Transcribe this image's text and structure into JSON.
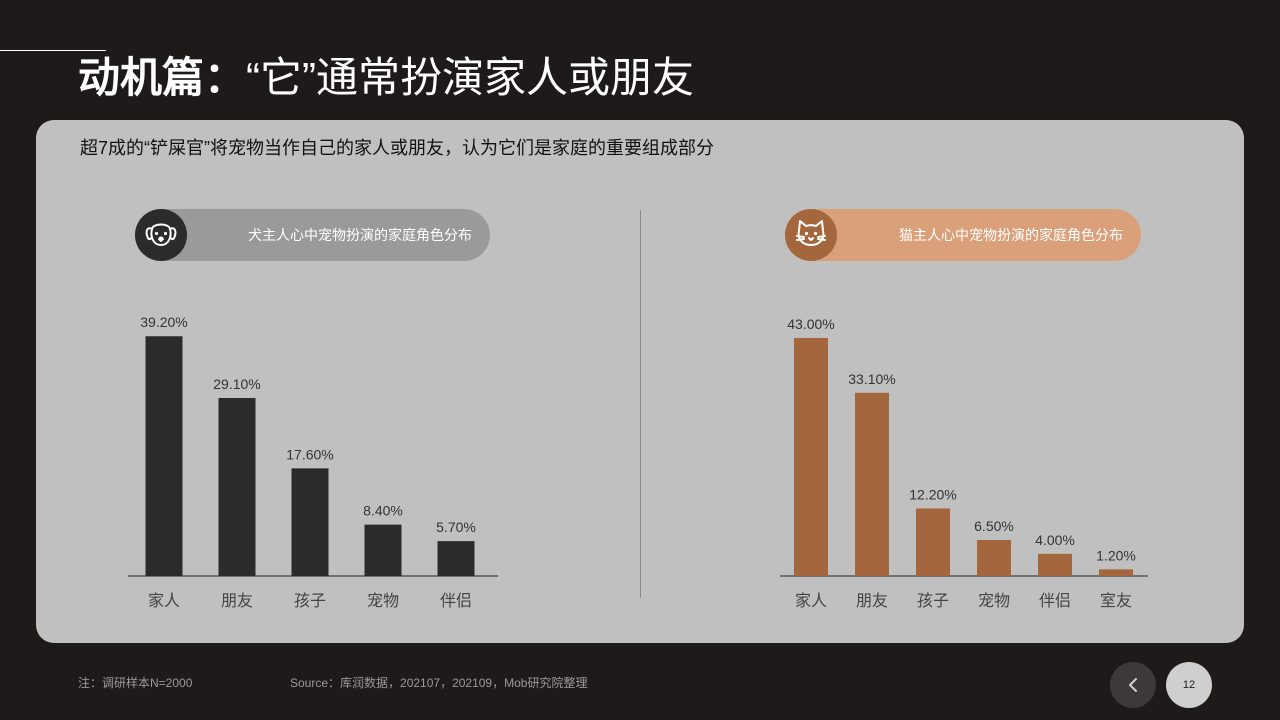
{
  "header": {
    "title_lead": "动机篇：",
    "title_rest": "“它”通常扮演家人或朋友"
  },
  "panel": {
    "subtitle": "超7成的“铲屎官”将宠物当作自己的家人或朋友，认为它们是家庭的重要组成部分",
    "dog_pill": {
      "label": "犬主人心中宠物扮演的家庭角色分布",
      "icon": "dog-icon",
      "color": "#9a9a9a",
      "icon_bg": "#2b2b2b"
    },
    "cat_pill": {
      "label": "猫主人心中宠物扮演的家庭角色分布",
      "icon": "cat-icon",
      "color": "#d9a07a",
      "icon_bg": "#a4673d"
    }
  },
  "chart_data": [
    {
      "type": "bar",
      "categories": [
        "家人",
        "朋友",
        "孩子",
        "宠物",
        "伴侣"
      ],
      "values": [
        39.2,
        29.1,
        17.6,
        8.4,
        5.7
      ],
      "labels": [
        "39.20%",
        "29.10%",
        "17.60%",
        "8.40%",
        "5.70%"
      ],
      "ylim": [
        0,
        43
      ],
      "color": "#2b2b2b",
      "grid": false
    },
    {
      "type": "bar",
      "categories": [
        "家人",
        "朋友",
        "孩子",
        "宠物",
        "伴侣",
        "室友"
      ],
      "values": [
        43.0,
        33.1,
        12.2,
        6.5,
        4.0,
        1.2
      ],
      "labels": [
        "43.00%",
        "33.10%",
        "12.20%",
        "6.50%",
        "4.00%",
        "1.20%"
      ],
      "ylim": [
        0,
        43
      ],
      "color": "#a4673d",
      "grid": false
    }
  ],
  "footer": {
    "note": "注：调研样本N=2000",
    "source": "Source：库润数据，202107，202109，Mob研究院整理",
    "page_number": "12",
    "prev_icon": "chevron-left-icon"
  }
}
